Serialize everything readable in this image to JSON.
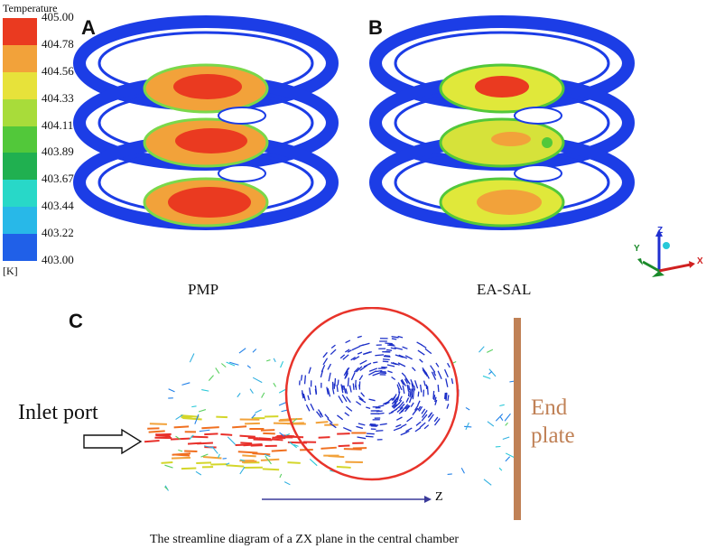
{
  "panels": {
    "a": "A",
    "b": "B",
    "c": "C"
  },
  "legend": {
    "title": "Temperature",
    "unit": "[K]",
    "ticks": [
      "405.00",
      "404.78",
      "404.56",
      "404.33",
      "404.11",
      "403.89",
      "403.67",
      "403.44",
      "403.22",
      "403.00"
    ],
    "colors": [
      "#ea3a20",
      "#f2a23a",
      "#e7e23a",
      "#a8dc3a",
      "#52c83a",
      "#20b050",
      "#28d8c8",
      "#28b8e8",
      "#2060e8"
    ]
  },
  "figures": {
    "left_label": "PMP",
    "right_label": "EA-SAL"
  },
  "axes": {
    "z": "Z",
    "y": "Y",
    "x": "X"
  },
  "streamline": {
    "inlet": "Inlet port",
    "end_plate_line1": "End",
    "end_plate_line2": "plate",
    "z_axis": "Z"
  },
  "caption": "The streamline diagram of a ZX plane in the central chamber"
}
